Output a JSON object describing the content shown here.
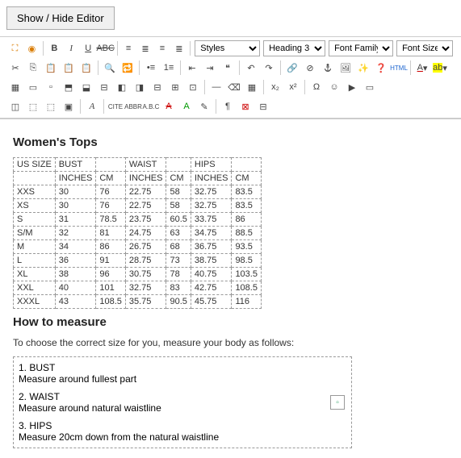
{
  "toggle_button_label": "Show / Hide Editor",
  "selects": {
    "styles": {
      "label": "Styles",
      "options": [
        "Styles"
      ]
    },
    "format": {
      "label": "Heading 3",
      "options": [
        "Heading 3"
      ]
    },
    "font_family": {
      "label": "Font Family",
      "options": [
        "Font Family"
      ]
    },
    "font_size": {
      "label": "Font Size",
      "options": [
        "Font Size"
      ]
    }
  },
  "toolbar_colors": {
    "fullscreen_icon": "#d97b00",
    "text_color_swatch": "#cc0000",
    "highlight_swatch": "#ffff00",
    "help_icon": "#1e66d0",
    "html_label_color": "#1e66d0"
  },
  "content": {
    "heading1": "Women's Tops",
    "heading2": "How to measure",
    "intro": "To choose the correct size for you, measure your body as follows:",
    "table": {
      "top_headers": [
        "US SIZE",
        "BUST",
        "",
        "WAIST",
        "",
        "HIPS",
        ""
      ],
      "sub_headers": [
        "",
        "INCHES",
        "CM",
        "INCHES",
        "CM",
        "INCHES",
        "CM"
      ],
      "rows": [
        [
          "XXS",
          "30",
          "76",
          "22.75",
          "58",
          "32.75",
          "83.5"
        ],
        [
          "XS",
          "30",
          "76",
          "22.75",
          "58",
          "32.75",
          "83.5"
        ],
        [
          "S",
          "31",
          "78.5",
          "23.75",
          "60.5",
          "33.75",
          "86"
        ],
        [
          "S/M",
          "32",
          "81",
          "24.75",
          "63",
          "34.75",
          "88.5"
        ],
        [
          "M",
          "34",
          "86",
          "26.75",
          "68",
          "36.75",
          "93.5"
        ],
        [
          "L",
          "36",
          "91",
          "28.75",
          "73",
          "38.75",
          "98.5"
        ],
        [
          "XL",
          "38",
          "96",
          "30.75",
          "78",
          "40.75",
          "103.5"
        ],
        [
          "XXL",
          "40",
          "101",
          "32.75",
          "83",
          "42.75",
          "108.5"
        ],
        [
          "XXXL",
          "43",
          "108.5",
          "35.75",
          "90.5",
          "45.75",
          "116"
        ]
      ]
    },
    "measures": [
      {
        "num": "1. BUST",
        "text": "Measure around fullest part"
      },
      {
        "num": "2. WAIST",
        "text": "Measure around natural waistline"
      },
      {
        "num": "3. HIPS",
        "text": "Measure 20cm down from the natural waistline"
      }
    ]
  }
}
